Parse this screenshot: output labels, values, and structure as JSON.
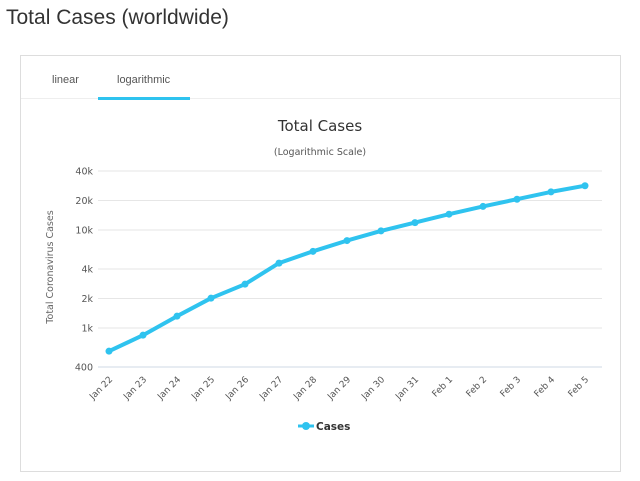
{
  "page": {
    "title": "Total Cases (worldwide)"
  },
  "tabs": [
    {
      "label": "linear",
      "active": false
    },
    {
      "label": "logarithmic",
      "active": true
    }
  ],
  "colors": {
    "accent": "#2fc3ef",
    "series": "#2fc3ef",
    "grid": "#e6e6e6",
    "text": "#333333"
  },
  "chart_data": {
    "type": "line",
    "title": "Total Cases",
    "subtitle": "(Logarithmic Scale)",
    "ylabel": "Total Coronavirus Cases",
    "xlabel": "",
    "yscale": "log",
    "ylim": [
      400,
      40000
    ],
    "yticks": [
      400,
      1000,
      2000,
      4000,
      10000,
      20000,
      40000
    ],
    "ytick_labels": [
      "400",
      "1k",
      "2k",
      "4k",
      "10k",
      "20k",
      "40k"
    ],
    "grid": true,
    "legend": "bottom-center",
    "categories": [
      "Jan 22",
      "Jan 23",
      "Jan 24",
      "Jan 25",
      "Jan 26",
      "Jan 27",
      "Jan 28",
      "Jan 29",
      "Jan 30",
      "Jan 31",
      "Feb 1",
      "Feb 2",
      "Feb 3",
      "Feb 4",
      "Feb 5"
    ],
    "series": [
      {
        "name": "Cases",
        "values": [
          580,
          845,
          1320,
          2015,
          2800,
          4590,
          6060,
          7800,
          9800,
          11900,
          14500,
          17400,
          20600,
          24500,
          28300
        ]
      }
    ]
  }
}
